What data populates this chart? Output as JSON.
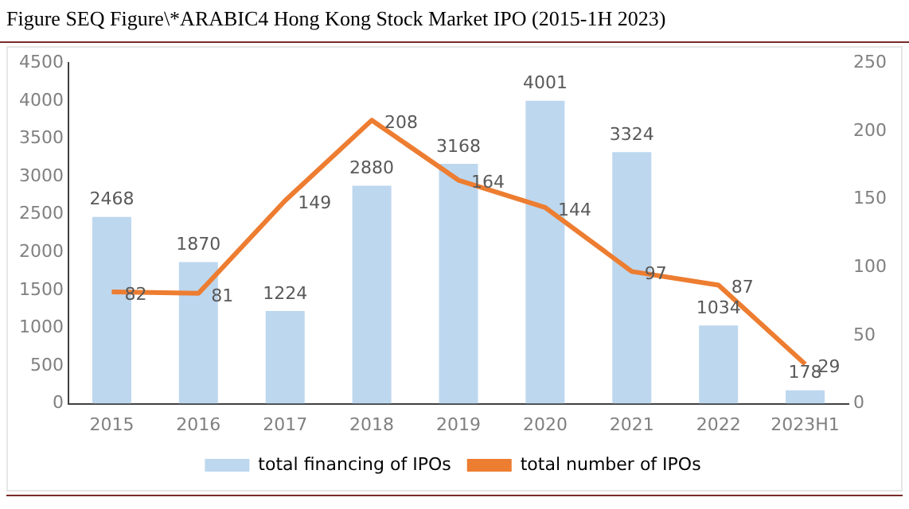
{
  "chart_data": {
    "type": "bar",
    "title": "Figure SEQ Figure\\*ARABIC4 Hong Kong Stock Market IPO (2015-1H 2023)",
    "categories": [
      "2015",
      "2016",
      "2017",
      "2018",
      "2019",
      "2020",
      "2021",
      "2022",
      "2023H1"
    ],
    "series": [
      {
        "name": "total financing of IPOs",
        "color": "#bdd7ee",
        "values": [
          2468,
          1870,
          1224,
          2880,
          3168,
          4001,
          3324,
          1034,
          178
        ]
      },
      {
        "name": "total number of IPOs",
        "type": "line",
        "axis": "y2",
        "color": "#ed7d31",
        "values": [
          82,
          81,
          149,
          208,
          164,
          144,
          97,
          87,
          29
        ]
      }
    ],
    "ylim": [
      0,
      4500
    ],
    "yticks": [
      0,
      500,
      1000,
      1500,
      2000,
      2500,
      3000,
      3500,
      4000,
      4500
    ],
    "y2lim": [
      0,
      250
    ],
    "y2ticks": [
      0,
      50,
      100,
      150,
      200,
      250
    ],
    "grid": false,
    "legend": "bottom",
    "data_labels": true,
    "marker": "none"
  }
}
